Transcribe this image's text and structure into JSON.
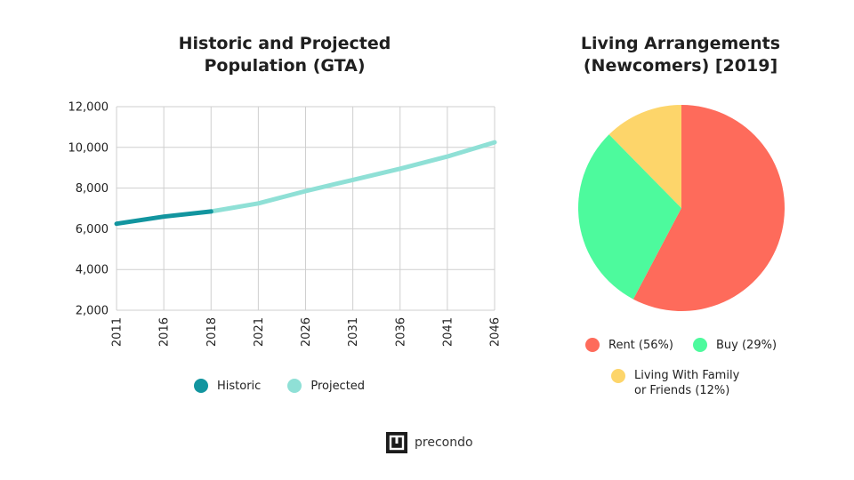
{
  "chart_data": [
    {
      "type": "line",
      "title": [
        "Historic and Projected",
        "Population (GTA)"
      ],
      "xlabel": "",
      "ylabel": "",
      "x": [
        "2011",
        "2016",
        "2018",
        "2021",
        "2026",
        "2031",
        "2036",
        "2041",
        "2046"
      ],
      "ylim": [
        2000,
        12000
      ],
      "yticks": [
        "2,000",
        "4,000",
        "6,000",
        "8,000",
        "10,000",
        "12,000"
      ],
      "grid": true,
      "legend": "bottom",
      "series": [
        {
          "name": "Historic",
          "color": "#12959f",
          "points": [
            [
              2011,
              6250
            ],
            [
              2016,
              6600
            ],
            [
              2018,
              6850
            ]
          ]
        },
        {
          "name": "Projected",
          "color": "#8fe0d6",
          "points": [
            [
              2018,
              6850
            ],
            [
              2021,
              7250
            ],
            [
              2026,
              7850
            ],
            [
              2031,
              8400
            ],
            [
              2036,
              8950
            ],
            [
              2041,
              9550
            ],
            [
              2046,
              10250
            ]
          ]
        }
      ]
    },
    {
      "type": "pie",
      "title": [
        "Living Arrangements",
        "(Newcomers) [2019]"
      ],
      "legend": "bottom",
      "slices": [
        {
          "label": "Rent (56%)",
          "value": 56,
          "color": "#fe6b5b"
        },
        {
          "label": "Buy (29%)",
          "value": 29,
          "color": "#4dfa9d"
        },
        {
          "label": [
            "Living With Family",
            "or Friends (12%)"
          ],
          "value": 12,
          "color": "#fdd56a"
        }
      ]
    }
  ],
  "brand": {
    "name": "precondo"
  }
}
